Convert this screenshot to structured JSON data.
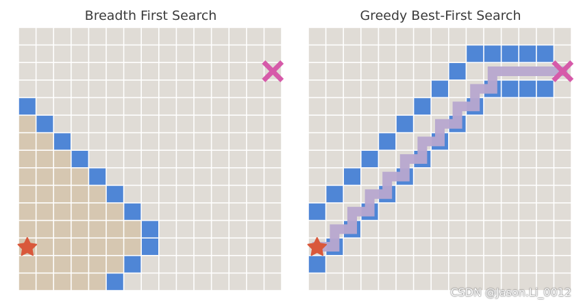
{
  "panels": {
    "left": {
      "title": "Breadth First Search",
      "start": [
        0,
        12
      ],
      "goal": [
        14,
        2
      ],
      "frontier": [
        [
          0,
          4
        ],
        [
          1,
          5
        ],
        [
          2,
          6
        ],
        [
          3,
          7
        ],
        [
          4,
          8
        ],
        [
          5,
          9
        ],
        [
          6,
          10
        ],
        [
          7,
          11
        ],
        [
          7,
          12
        ],
        [
          6,
          13
        ],
        [
          5,
          14
        ]
      ],
      "explored_rows": [
        [
          0,
          0
        ],
        [
          0,
          1
        ],
        [
          0,
          2
        ],
        [
          0,
          3
        ],
        [
          0,
          4
        ],
        [
          0,
          5
        ],
        [
          0,
          6
        ],
        [
          0,
          6
        ],
        [
          0,
          5
        ],
        [
          0,
          4
        ]
      ],
      "explored_row_start": 5,
      "path": []
    },
    "right": {
      "title": "Greedy Best-First Search",
      "start": [
        0,
        12
      ],
      "goal": [
        14,
        2
      ],
      "frontier": [
        [
          9,
          1
        ],
        [
          10,
          1
        ],
        [
          11,
          1
        ],
        [
          12,
          1
        ],
        [
          13,
          1
        ],
        [
          8,
          2
        ],
        [
          7,
          3
        ],
        [
          10,
          3
        ],
        [
          11,
          3
        ],
        [
          12,
          3
        ],
        [
          13,
          3
        ],
        [
          6,
          4
        ],
        [
          9,
          4
        ],
        [
          5,
          5
        ],
        [
          8,
          5
        ],
        [
          4,
          6
        ],
        [
          7,
          6
        ],
        [
          3,
          7
        ],
        [
          6,
          7
        ],
        [
          2,
          8
        ],
        [
          5,
          8
        ],
        [
          1,
          9
        ],
        [
          4,
          9
        ],
        [
          0,
          10
        ],
        [
          3,
          10
        ],
        [
          2,
          11
        ],
        [
          1,
          12
        ],
        [
          0,
          13
        ]
      ],
      "explored_rows": [],
      "explored_row_start": 0,
      "path": [
        [
          0,
          12
        ],
        [
          1,
          11
        ],
        [
          2,
          10
        ],
        [
          3,
          9
        ],
        [
          4,
          8
        ],
        [
          5,
          7
        ],
        [
          6,
          6
        ],
        [
          7,
          5
        ],
        [
          8,
          4
        ],
        [
          9,
          3
        ],
        [
          10,
          2
        ],
        [
          14,
          2
        ]
      ]
    }
  },
  "colors": {
    "cell": "#e0dcd6",
    "cell_line": "#ffffff",
    "explored": "#d6c7b1",
    "frontier": "#4f86d6",
    "path": "#b7a6cf",
    "start": "#d9583b",
    "goal": "#d65aa9"
  },
  "icons": {
    "start": "star-icon",
    "goal": "cross-icon"
  },
  "watermark": "CSDN @Jason.Li_0012"
}
